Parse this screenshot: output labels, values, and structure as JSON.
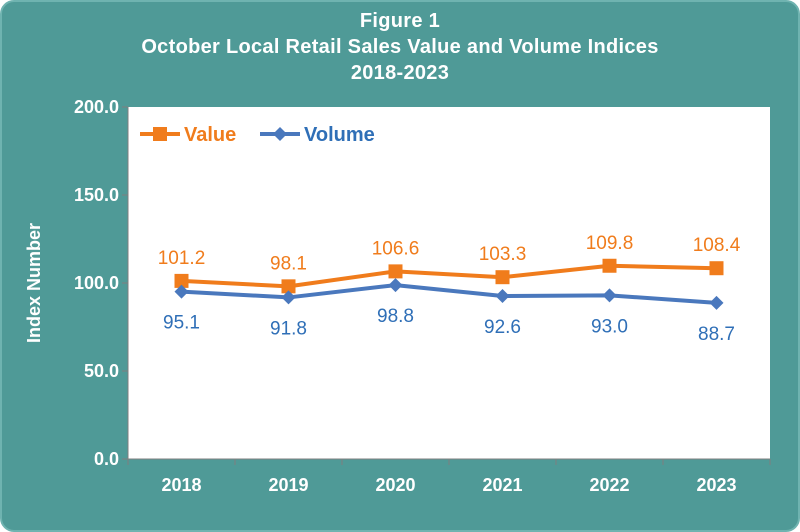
{
  "chart_data": {
    "type": "line",
    "title": "Figure 1",
    "subtitle": "October Local Retail Sales Value and Volume Indices",
    "period": "2018-2023",
    "xlabel": "",
    "ylabel": "Index Number",
    "categories": [
      "2018",
      "2019",
      "2020",
      "2021",
      "2022",
      "2023"
    ],
    "ylim": [
      0,
      200
    ],
    "yticks": [
      "0.0",
      "50.0",
      "100.0",
      "150.0",
      "200.0"
    ],
    "legend_position": "top-left",
    "series": [
      {
        "name": "Value",
        "color": "#f07c1c",
        "marker": "square",
        "values": [
          101.2,
          98.1,
          106.6,
          103.3,
          109.8,
          108.4
        ],
        "labels": [
          "101.2",
          "98.1",
          "106.6",
          "103.3",
          "109.8",
          "108.4"
        ],
        "label_position": "above"
      },
      {
        "name": "Volume",
        "color": "#4a78bd",
        "label_color": "#2f6fb7",
        "marker": "diamond",
        "values": [
          95.1,
          91.8,
          98.8,
          92.6,
          93.0,
          88.7
        ],
        "labels": [
          "95.1",
          "91.8",
          "98.8",
          "92.6",
          "93.0",
          "88.7"
        ],
        "label_position": "below"
      }
    ]
  }
}
